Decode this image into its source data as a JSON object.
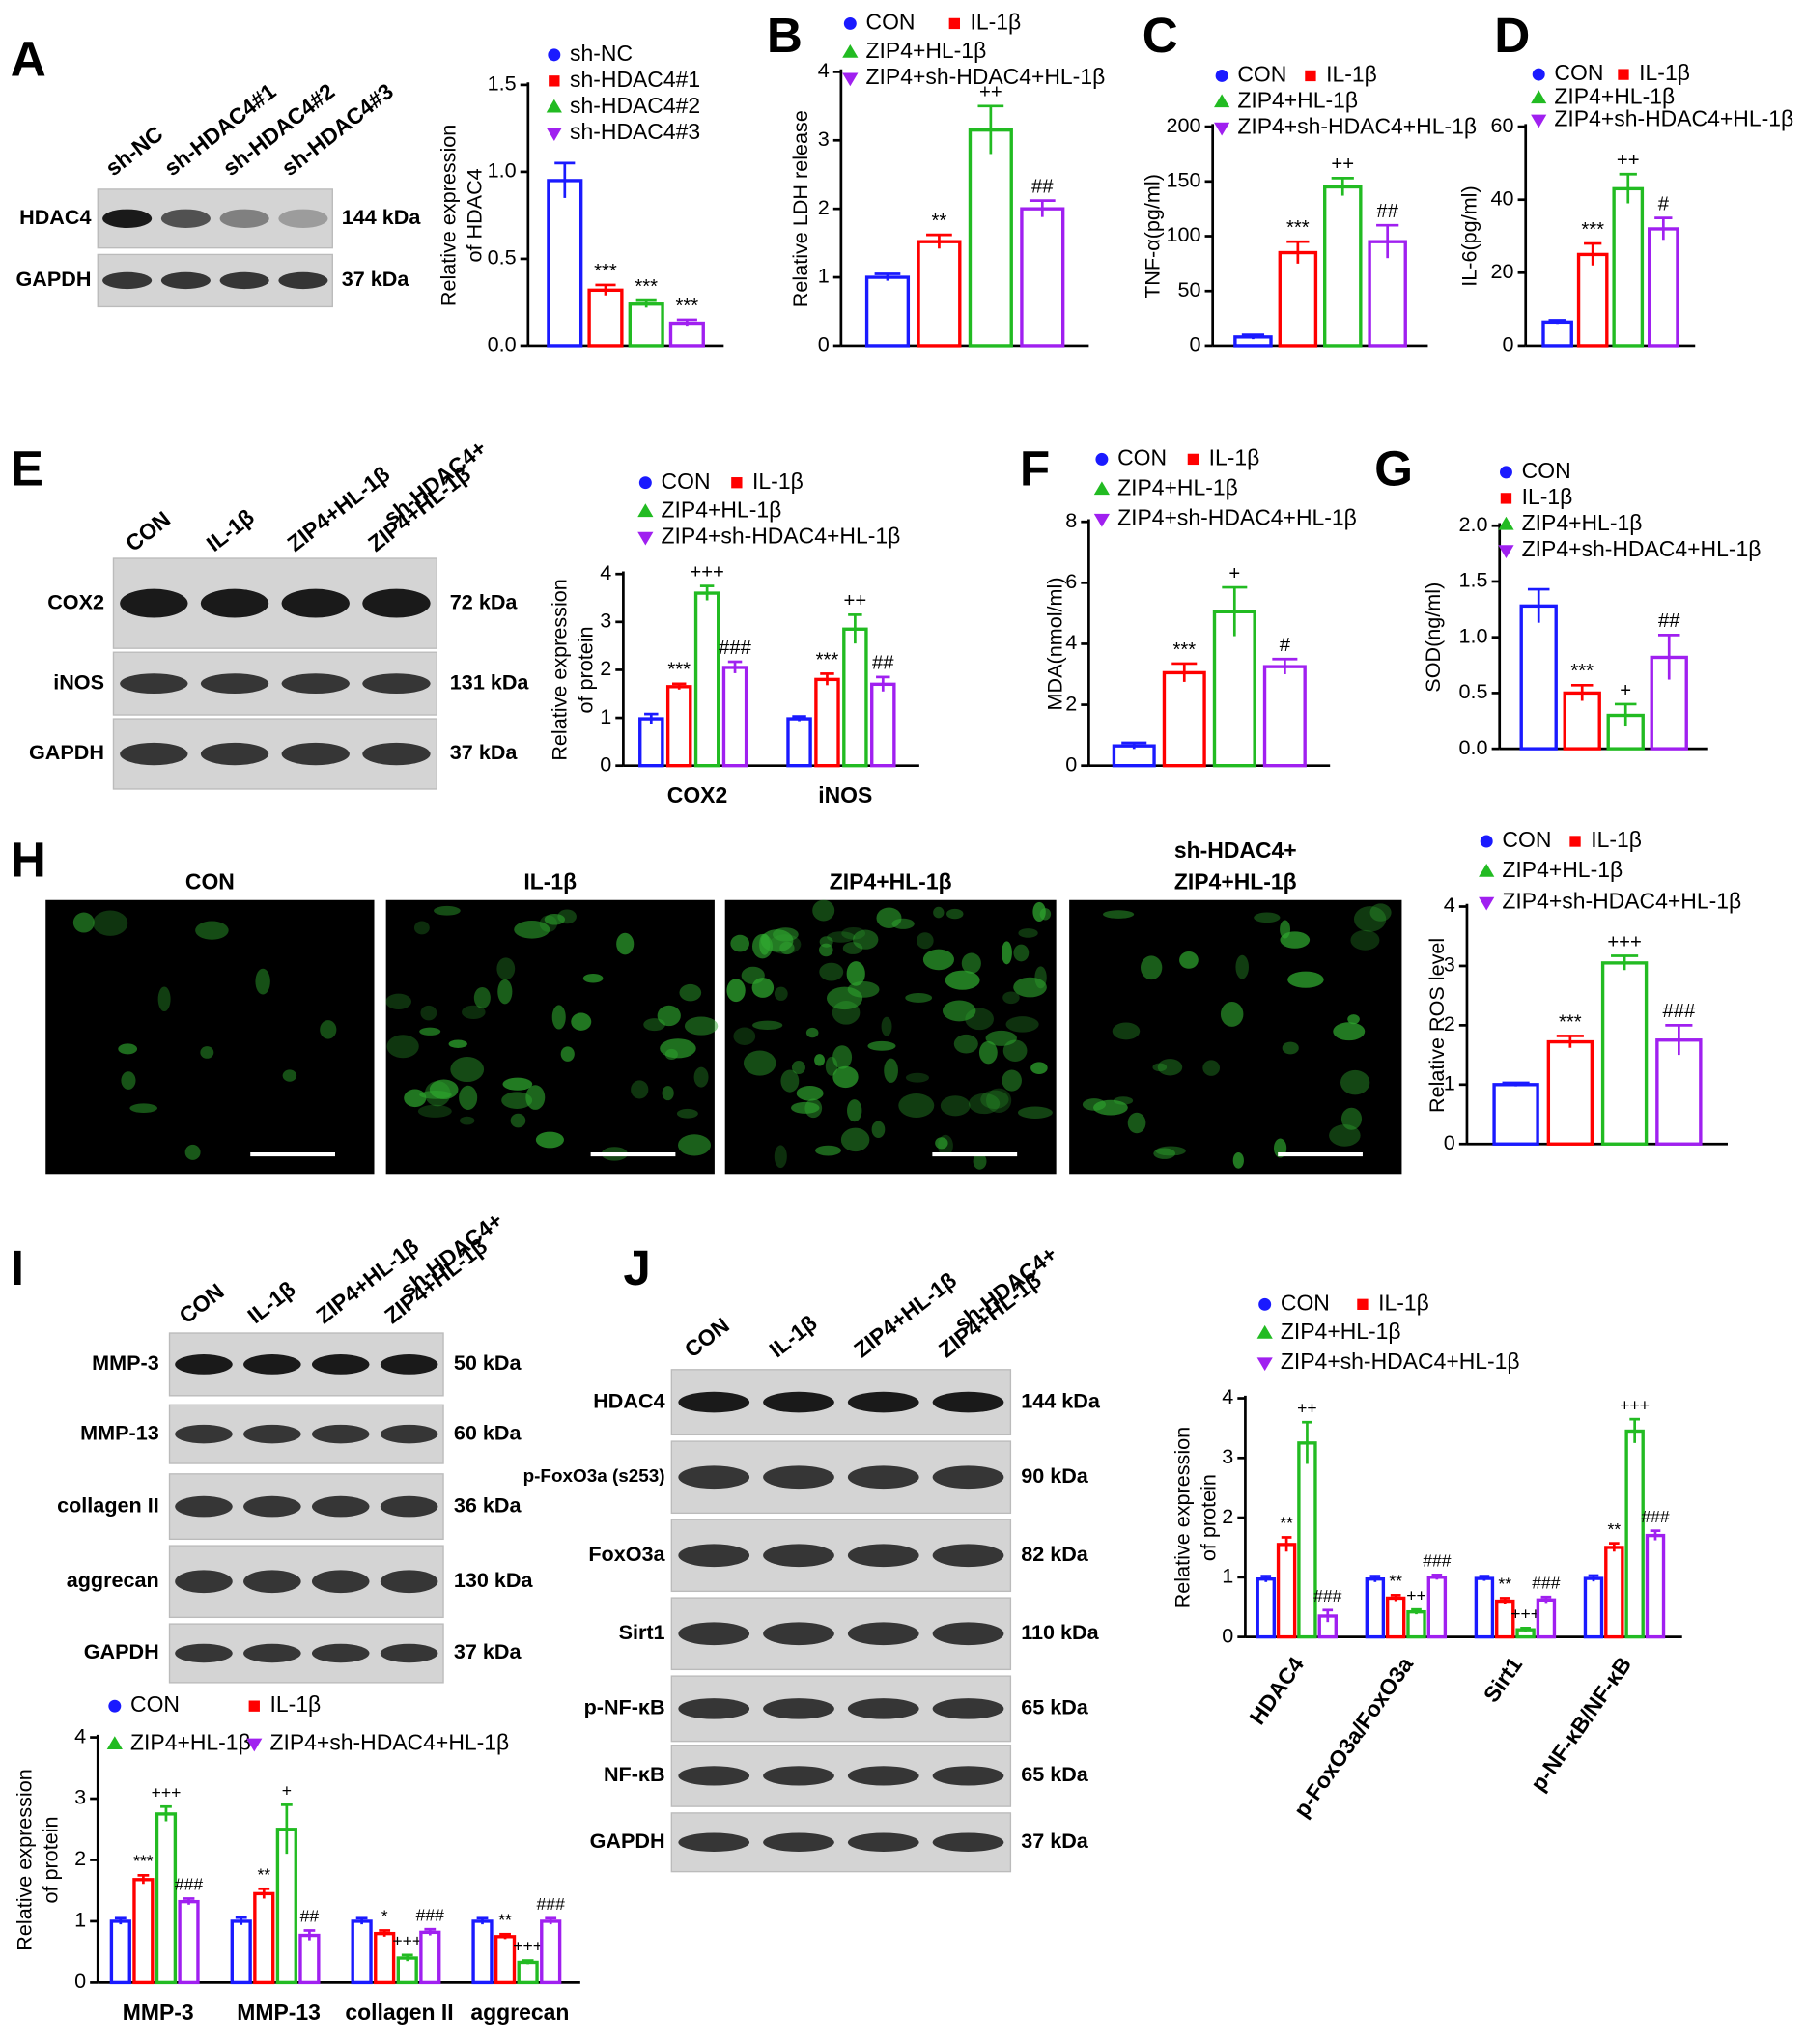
{
  "panel_labels": [
    "A",
    "B",
    "C",
    "D",
    "E",
    "F",
    "G",
    "H",
    "I",
    "J"
  ],
  "blots": [
    {
      "lanes": [
        [
          "sh-NC"
        ],
        [
          "sh-HDAC4#1"
        ],
        [
          "sh-HDAC4#2"
        ],
        [
          "sh-HDAC4#3"
        ]
      ],
      "rows": [
        {
          "label": "HDAC4",
          "size": "144 kDa"
        },
        {
          "label": "GAPDH",
          "size": "37 kDa"
        }
      ]
    },
    {
      "lanes": [
        [
          "CON"
        ],
        [
          "IL-1β"
        ],
        [
          "ZIP4+HL-1β"
        ],
        [
          "sh-HDAC4+",
          "ZIP4+HL-1β"
        ]
      ],
      "rows": [
        {
          "label": "COX2",
          "size": "72 kDa"
        },
        {
          "label": "iNOS",
          "size": "131 kDa"
        },
        {
          "label": "GAPDH",
          "size": "37 kDa"
        }
      ]
    },
    {
      "lanes": [
        [
          "CON"
        ],
        [
          "IL-1β"
        ],
        [
          "ZIP4+HL-1β"
        ],
        [
          "sh-HDAC4+",
          "ZIP4+HL-1β"
        ]
      ],
      "rows": [
        {
          "label": "MMP-3",
          "size": "50 kDa"
        },
        {
          "label": "MMP-13",
          "size": "60 kDa"
        },
        {
          "label": "collagen II",
          "size": "36 kDa"
        },
        {
          "label": "aggrecan",
          "size": "130 kDa"
        },
        {
          "label": "GAPDH",
          "size": "37 kDa"
        }
      ]
    },
    {
      "lanes": [
        [
          "CON"
        ],
        [
          "IL-1β"
        ],
        [
          "ZIP4+HL-1β"
        ],
        [
          "sh-HDAC4+",
          "ZIP4+HL-1β"
        ]
      ],
      "rows": [
        {
          "label": "HDAC4",
          "size": "144 kDa"
        },
        {
          "label": "p-FoxO3a (s253)",
          "size": "90 kDa"
        },
        {
          "label": "FoxO3a",
          "size": "82 kDa"
        },
        {
          "label": "Sirt1",
          "size": "110 kDa"
        },
        {
          "label": "p-NF-κB",
          "size": "65 kDa"
        },
        {
          "label": "NF-κB",
          "size": "65 kDa"
        },
        {
          "label": "GAPDH",
          "size": "37 kDa"
        }
      ]
    }
  ],
  "images": {
    "titles": [
      [
        "CON"
      ],
      [
        "IL-1β"
      ],
      [
        "ZIP4+HL-1β"
      ],
      [
        "sh-HDAC4+",
        "ZIP4+HL-1β"
      ]
    ]
  },
  "chart_data": [
    {
      "type": "bar",
      "ylabel": [
        "Relative expression",
        "of HDAC4"
      ],
      "ylim": [
        0,
        1.5
      ],
      "yticks": [
        {
          "value": 0,
          "label": "0.0"
        },
        {
          "value": 0.5,
          "label": "0.5"
        },
        {
          "value": 1,
          "label": "1.0"
        },
        {
          "value": 1.5,
          "label": "1.5"
        }
      ],
      "series": [
        {
          "name": "sh-NC",
          "color": "#1a1aff",
          "marker": "circle",
          "values": [
            0.95
          ],
          "errors": [
            0.1
          ],
          "notes": [
            null
          ]
        },
        {
          "name": "sh-HDAC4#1",
          "color": "#ff0000",
          "marker": "square",
          "values": [
            0.32
          ],
          "errors": [
            0.03
          ],
          "notes": [
            "***"
          ]
        },
        {
          "name": "sh-HDAC4#2",
          "color": "#22bb22",
          "marker": "triangle-up",
          "values": [
            0.24
          ],
          "errors": [
            0.02
          ],
          "notes": [
            "***"
          ]
        },
        {
          "name": "sh-HDAC4#3",
          "color": "#a020f0",
          "marker": "triangle-down",
          "values": [
            0.13
          ],
          "errors": [
            0.02
          ],
          "notes": [
            "***"
          ]
        }
      ]
    },
    {
      "type": "bar",
      "ylabel": [
        "Relative LDH release"
      ],
      "ylim": [
        0,
        4
      ],
      "yticks": [
        0,
        1,
        2,
        3,
        4
      ],
      "series": [
        {
          "name": "CON",
          "color": "#1a1aff",
          "marker": "circle",
          "values": [
            1.0
          ],
          "errors": [
            0.05
          ],
          "notes": [
            null
          ]
        },
        {
          "name": "IL-1β",
          "color": "#ff0000",
          "marker": "square",
          "values": [
            1.52
          ],
          "errors": [
            0.1
          ],
          "notes": [
            "**"
          ]
        },
        {
          "name": "ZIP4+HL-1β",
          "color": "#22bb22",
          "marker": "triangle-up",
          "values": [
            3.15
          ],
          "errors": [
            0.35
          ],
          "notes": [
            "++"
          ]
        },
        {
          "name": "ZIP4+sh-HDAC4+HL-1β",
          "color": "#a020f0",
          "marker": "triangle-down",
          "values": [
            2.0
          ],
          "errors": [
            0.12
          ],
          "notes": [
            "##"
          ]
        }
      ]
    },
    {
      "type": "bar",
      "ylabel": [
        "TNF-α(pg/ml)"
      ],
      "ylim": [
        0,
        200
      ],
      "yticks": [
        0,
        50,
        100,
        150,
        200
      ],
      "series": [
        {
          "name": "CON",
          "color": "#1a1aff",
          "marker": "circle",
          "values": [
            8
          ],
          "errors": [
            2
          ],
          "notes": [
            null
          ]
        },
        {
          "name": "IL-1β",
          "color": "#ff0000",
          "marker": "square",
          "values": [
            85
          ],
          "errors": [
            10
          ],
          "notes": [
            "***"
          ]
        },
        {
          "name": "ZIP4+HL-1β",
          "color": "#22bb22",
          "marker": "triangle-up",
          "values": [
            145
          ],
          "errors": [
            8
          ],
          "notes": [
            "++"
          ]
        },
        {
          "name": "ZIP4+sh-HDAC4+HL-1β",
          "color": "#a020f0",
          "marker": "triangle-down",
          "values": [
            95
          ],
          "errors": [
            15
          ],
          "notes": [
            "##"
          ]
        }
      ]
    },
    {
      "type": "bar",
      "ylabel": [
        "IL-6(pg/ml)"
      ],
      "ylim": [
        0,
        60
      ],
      "yticks": [
        0,
        20,
        40,
        60
      ],
      "series": [
        {
          "name": "CON",
          "color": "#1a1aff",
          "marker": "circle",
          "values": [
            6.5
          ],
          "errors": [
            0.5
          ],
          "notes": [
            null
          ]
        },
        {
          "name": "IL-1β",
          "color": "#ff0000",
          "marker": "square",
          "values": [
            25
          ],
          "errors": [
            3
          ],
          "notes": [
            "***"
          ]
        },
        {
          "name": "ZIP4+HL-1β",
          "color": "#22bb22",
          "marker": "triangle-up",
          "values": [
            43
          ],
          "errors": [
            4
          ],
          "notes": [
            "++"
          ]
        },
        {
          "name": "ZIP4+sh-HDAC4+HL-1β",
          "color": "#a020f0",
          "marker": "triangle-down",
          "values": [
            32
          ],
          "errors": [
            3
          ],
          "notes": [
            "#"
          ]
        }
      ]
    },
    {
      "type": "bar",
      "ylabel": [
        "Relative expression",
        "of protein"
      ],
      "ylim": [
        0,
        4
      ],
      "yticks": [
        0,
        1,
        2,
        3,
        4
      ],
      "categories": [
        "COX2",
        "iNOS"
      ],
      "series": [
        {
          "name": "CON",
          "color": "#1a1aff",
          "marker": "circle",
          "values": [
            0.98,
            0.98
          ],
          "errors": [
            0.1,
            0.05
          ],
          "notes": [
            null,
            null
          ]
        },
        {
          "name": "IL-1β",
          "color": "#ff0000",
          "marker": "square",
          "values": [
            1.65,
            1.8
          ],
          "errors": [
            0.06,
            0.12
          ],
          "notes": [
            "***",
            "***"
          ]
        },
        {
          "name": "ZIP4+HL-1β",
          "color": "#22bb22",
          "marker": "triangle-up",
          "values": [
            3.6,
            2.85
          ],
          "errors": [
            0.15,
            0.3
          ],
          "notes": [
            "+++",
            "++"
          ]
        },
        {
          "name": "ZIP4+sh-HDAC4+HL-1β",
          "color": "#a020f0",
          "marker": "triangle-down",
          "values": [
            2.05,
            1.7
          ],
          "errors": [
            0.12,
            0.15
          ],
          "notes": [
            "###",
            "##"
          ]
        }
      ]
    },
    {
      "type": "bar",
      "ylabel": [
        "MDA(nmol/ml)"
      ],
      "ylim": [
        0,
        8
      ],
      "yticks": [
        0,
        2,
        4,
        6,
        8
      ],
      "series": [
        {
          "name": "CON",
          "color": "#1a1aff",
          "marker": "circle",
          "values": [
            0.65
          ],
          "errors": [
            0.1
          ],
          "notes": [
            null
          ]
        },
        {
          "name": "IL-1β",
          "color": "#ff0000",
          "marker": "square",
          "values": [
            3.05
          ],
          "errors": [
            0.3
          ],
          "notes": [
            "***"
          ]
        },
        {
          "name": "ZIP4+HL-1β",
          "color": "#22bb22",
          "marker": "triangle-up",
          "values": [
            5.05
          ],
          "errors": [
            0.8
          ],
          "notes": [
            "+"
          ]
        },
        {
          "name": "ZIP4+sh-HDAC4+HL-1β",
          "color": "#a020f0",
          "marker": "triangle-down",
          "values": [
            3.25
          ],
          "errors": [
            0.25
          ],
          "notes": [
            "#"
          ]
        }
      ]
    },
    {
      "type": "bar",
      "ylabel": [
        "SOD(ng/ml)"
      ],
      "ylim": [
        0,
        2
      ],
      "yticks": [
        {
          "value": 0,
          "label": "0.0"
        },
        {
          "value": 0.5,
          "label": "0.5"
        },
        {
          "value": 1,
          "label": "1.0"
        },
        {
          "value": 1.5,
          "label": "1.5"
        },
        {
          "value": 2,
          "label": "2.0"
        }
      ],
      "series": [
        {
          "name": "CON",
          "color": "#1a1aff",
          "marker": "circle",
          "values": [
            1.28
          ],
          "errors": [
            0.15
          ],
          "notes": [
            null
          ]
        },
        {
          "name": "IL-1β",
          "color": "#ff0000",
          "marker": "square",
          "values": [
            0.5
          ],
          "errors": [
            0.07
          ],
          "notes": [
            "***"
          ]
        },
        {
          "name": "ZIP4+HL-1β",
          "color": "#22bb22",
          "marker": "triangle-up",
          "values": [
            0.3
          ],
          "errors": [
            0.1
          ],
          "notes": [
            "+"
          ]
        },
        {
          "name": "ZIP4+sh-HDAC4+HL-1β",
          "color": "#a020f0",
          "marker": "triangle-down",
          "values": [
            0.82
          ],
          "errors": [
            0.2
          ],
          "notes": [
            "##"
          ]
        }
      ]
    },
    {
      "type": "bar",
      "ylabel": [
        "Relative ROS level"
      ],
      "ylim": [
        0,
        4
      ],
      "yticks": [
        0,
        1,
        2,
        3,
        4
      ],
      "series": [
        {
          "name": "CON",
          "color": "#1a1aff",
          "marker": "circle",
          "values": [
            1.0
          ],
          "errors": [
            0.03
          ],
          "notes": [
            null
          ]
        },
        {
          "name": "IL-1β",
          "color": "#ff0000",
          "marker": "square",
          "values": [
            1.72
          ],
          "errors": [
            0.1
          ],
          "notes": [
            "***"
          ]
        },
        {
          "name": "ZIP4+HL-1β",
          "color": "#22bb22",
          "marker": "triangle-up",
          "values": [
            3.05
          ],
          "errors": [
            0.12
          ],
          "notes": [
            "+++"
          ]
        },
        {
          "name": "ZIP4+sh-HDAC4+HL-1β",
          "color": "#a020f0",
          "marker": "triangle-down",
          "values": [
            1.75
          ],
          "errors": [
            0.25
          ],
          "notes": [
            "###"
          ]
        }
      ]
    },
    {
      "type": "bar",
      "ylabel": [
        "Relative expression",
        "of protein"
      ],
      "ylim": [
        0,
        4
      ],
      "yticks": [
        0,
        1,
        2,
        3,
        4
      ],
      "categories": [
        "MMP-3",
        "MMP-13",
        "collagen II",
        "aggrecan"
      ],
      "series": [
        {
          "name": "CON",
          "color": "#1a1aff",
          "marker": "circle",
          "values": [
            1.0,
            1.0,
            1.0,
            1.0
          ],
          "errors": [
            0.05,
            0.06,
            0.05,
            0.05
          ],
          "notes": [
            null,
            null,
            null,
            null
          ]
        },
        {
          "name": "IL-1β",
          "color": "#ff0000",
          "marker": "square",
          "values": [
            1.68,
            1.45,
            0.8,
            0.75
          ],
          "errors": [
            0.07,
            0.08,
            0.05,
            0.04
          ],
          "notes": [
            "***",
            "**",
            "*",
            "**"
          ]
        },
        {
          "name": "ZIP4+HL-1β",
          "color": "#22bb22",
          "marker": "triangle-up",
          "values": [
            2.75,
            2.5,
            0.4,
            0.33
          ],
          "errors": [
            0.12,
            0.4,
            0.05,
            0.03
          ],
          "notes": [
            "+++",
            "+",
            "+++",
            "+++"
          ]
        },
        {
          "name": "ZIP4+sh-HDAC4+HL-1β",
          "color": "#a020f0",
          "marker": "triangle-down",
          "values": [
            1.32,
            0.77,
            0.82,
            1.0
          ],
          "errors": [
            0.05,
            0.08,
            0.05,
            0.05
          ],
          "notes": [
            "###",
            "##",
            "###",
            "###"
          ]
        }
      ]
    },
    {
      "type": "bar",
      "ylabel": [
        "Relative expression",
        "of protein"
      ],
      "ylim": [
        0,
        4
      ],
      "yticks": [
        0,
        1,
        2,
        3,
        4
      ],
      "categories": [
        "HDAC4",
        "p-FoxO3a/FoxO3a",
        "Sirt1",
        "p-NF-κB/NF-κB"
      ],
      "rotate_categories": true,
      "series": [
        {
          "name": "CON",
          "color": "#1a1aff",
          "marker": "circle",
          "values": [
            0.97,
            0.97,
            0.98,
            0.98
          ],
          "errors": [
            0.05,
            0.05,
            0.04,
            0.05
          ],
          "notes": [
            null,
            null,
            null,
            null
          ]
        },
        {
          "name": "IL-1β",
          "color": "#ff0000",
          "marker": "square",
          "values": [
            1.55,
            0.65,
            0.6,
            1.5
          ],
          "errors": [
            0.12,
            0.05,
            0.05,
            0.07
          ],
          "notes": [
            "**",
            "**",
            "**",
            "**"
          ]
        },
        {
          "name": "ZIP4+HL-1β",
          "color": "#22bb22",
          "marker": "triangle-up",
          "values": [
            3.25,
            0.42,
            0.12,
            3.45
          ],
          "errors": [
            0.35,
            0.04,
            0.03,
            0.2
          ],
          "notes": [
            "++",
            "++",
            "+++",
            "+++"
          ]
        },
        {
          "name": "ZIP4+sh-HDAC4+HL-1β",
          "color": "#a020f0",
          "marker": "triangle-down",
          "values": [
            0.35,
            1.0,
            0.62,
            1.7
          ],
          "errors": [
            0.1,
            0.04,
            0.05,
            0.08
          ],
          "notes": [
            "###",
            "###",
            "###",
            "###"
          ]
        }
      ]
    }
  ]
}
